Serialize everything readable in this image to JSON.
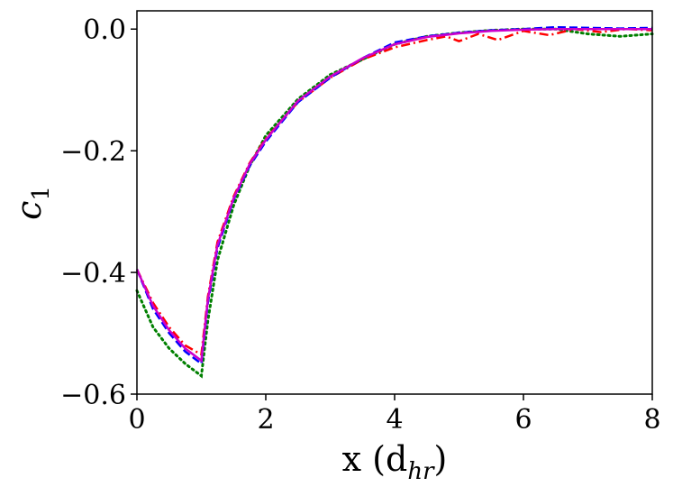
{
  "chart_data": {
    "type": "line",
    "xlabel": "x (d",
    "xlabel_sub": "hr",
    "xlabel_close": ")",
    "ylabel": "c",
    "ylabel_sub": "1",
    "xlim": [
      0,
      8
    ],
    "ylim": [
      -0.6,
      0.03
    ],
    "x_ticks": [
      0,
      2,
      4,
      6,
      8
    ],
    "x_tick_labels": [
      "0",
      "2",
      "4",
      "6",
      "8"
    ],
    "y_ticks": [
      -0.6,
      -0.4,
      -0.2,
      0.0
    ],
    "y_tick_labels": [
      "−0.6",
      "−0.4",
      "−0.2",
      "0.0"
    ],
    "grid": false,
    "series": [
      {
        "color": "#008000",
        "style": "dotted",
        "x": [
          0,
          0.25,
          0.5,
          0.75,
          1.0,
          1.1,
          1.25,
          1.5,
          1.75,
          2.0,
          2.5,
          3.0,
          3.5,
          4.0,
          4.5,
          5.0,
          5.5,
          6.0,
          6.5,
          7.0,
          7.5,
          8.0
        ],
        "y": [
          -0.43,
          -0.49,
          -0.525,
          -0.55,
          -0.57,
          -0.48,
          -0.38,
          -0.29,
          -0.225,
          -0.175,
          -0.115,
          -0.075,
          -0.05,
          -0.025,
          -0.012,
          -0.006,
          -0.002,
          0.0,
          0.0,
          -0.008,
          -0.012,
          -0.008
        ]
      },
      {
        "color": "#ff0000",
        "style": "dashdot",
        "x": [
          0,
          0.25,
          0.5,
          0.75,
          1.0,
          1.1,
          1.25,
          1.5,
          1.75,
          2.0,
          2.5,
          3.0,
          3.5,
          4.0,
          4.5,
          4.8,
          5.0,
          5.3,
          5.6,
          6.0,
          6.4,
          6.8,
          7.2,
          7.6,
          8.0
        ],
        "y": [
          -0.395,
          -0.45,
          -0.49,
          -0.52,
          -0.535,
          -0.44,
          -0.35,
          -0.275,
          -0.22,
          -0.18,
          -0.12,
          -0.08,
          -0.05,
          -0.03,
          -0.018,
          -0.012,
          -0.02,
          -0.008,
          -0.018,
          -0.003,
          -0.01,
          0.0,
          -0.005,
          0.0,
          -0.002
        ]
      },
      {
        "color": "#0000ff",
        "style": "dashed",
        "x": [
          0,
          0.25,
          0.5,
          0.75,
          1.0,
          1.1,
          1.25,
          1.5,
          1.75,
          2.0,
          2.5,
          3.0,
          3.5,
          4.0,
          4.5,
          5.0,
          5.5,
          6.0,
          6.5,
          7.0,
          7.5,
          8.0
        ],
        "y": [
          -0.395,
          -0.46,
          -0.5,
          -0.53,
          -0.55,
          -0.45,
          -0.36,
          -0.28,
          -0.225,
          -0.185,
          -0.12,
          -0.08,
          -0.048,
          -0.022,
          -0.012,
          -0.006,
          -0.002,
          0.0,
          0.003,
          0.002,
          0.001,
          0.002
        ]
      },
      {
        "color": "#cc00cc",
        "style": "solid",
        "x": [
          0,
          0.25,
          0.5,
          0.75,
          1.0,
          1.1,
          1.25,
          1.5,
          1.75,
          2.0,
          2.5,
          3.0,
          3.5,
          4.0,
          4.5,
          5.0,
          5.5,
          6.0,
          6.5,
          7.0,
          7.5,
          8.0
        ],
        "y": [
          -0.395,
          -0.455,
          -0.495,
          -0.525,
          -0.545,
          -0.445,
          -0.355,
          -0.278,
          -0.222,
          -0.182,
          -0.118,
          -0.078,
          -0.048,
          -0.025,
          -0.013,
          -0.007,
          -0.003,
          -0.001,
          0.0,
          0.0,
          0.0,
          0.0
        ]
      }
    ]
  }
}
